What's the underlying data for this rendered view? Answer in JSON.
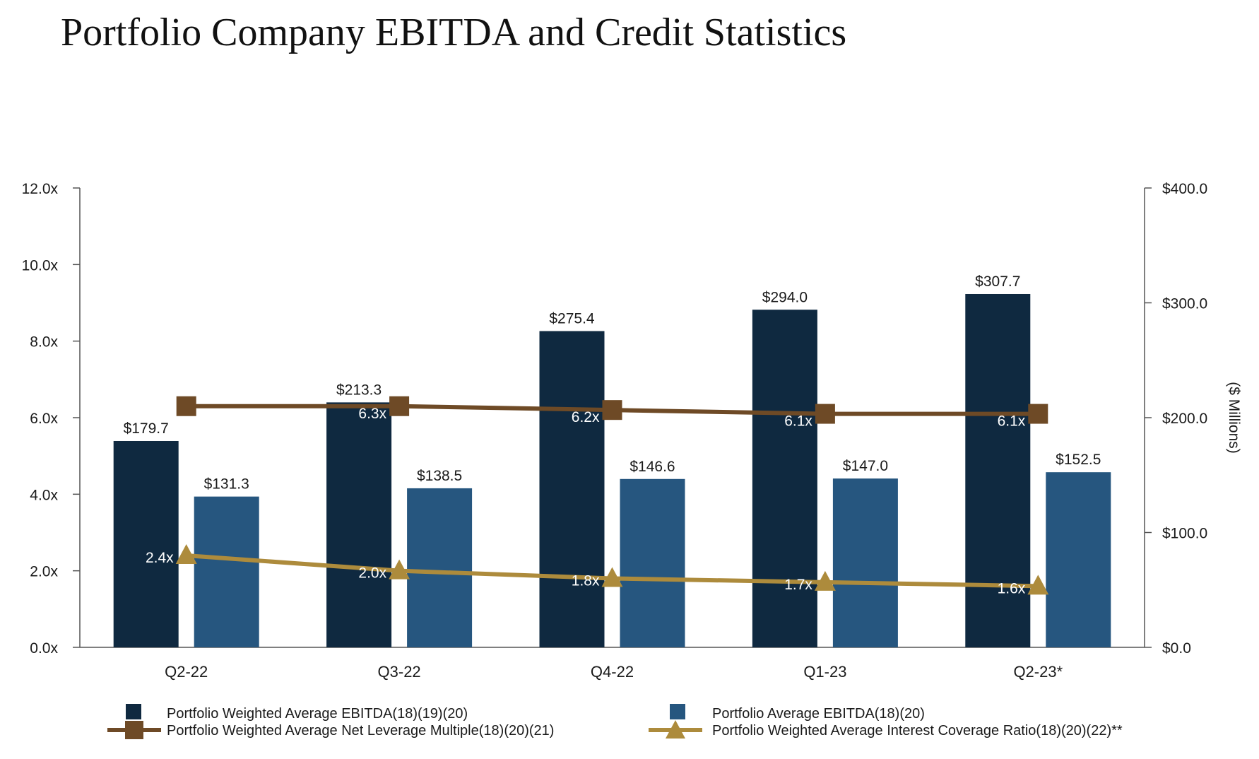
{
  "title": "Portfolio Company EBITDA and Credit Statistics",
  "chart_data": {
    "type": "bar",
    "categories": [
      "Q2-22",
      "Q3-22",
      "Q4-22",
      "Q1-23",
      "Q2-23*"
    ],
    "series": [
      {
        "name": "Portfolio Weighted Average EBITDA(18)(19)(20)",
        "kind": "bar",
        "axis": "right",
        "color": "#0f2940",
        "values": [
          179.7,
          213.3,
          275.4,
          294.0,
          307.7
        ],
        "labels": [
          "$179.7",
          "$213.3",
          "$275.4",
          "$294.0",
          "$307.7"
        ]
      },
      {
        "name": "Portfolio Average EBITDA(18)(20)",
        "kind": "bar",
        "axis": "right",
        "color": "#26567f",
        "values": [
          131.3,
          138.5,
          146.6,
          147.0,
          152.5
        ],
        "labels": [
          "$131.3",
          "$138.5",
          "$146.6",
          "$147.0",
          "$152.5"
        ]
      },
      {
        "name": "Portfolio Weighted Average Net Leverage Multiple(18)(20)(21)",
        "kind": "line",
        "marker": "square",
        "axis": "left",
        "color": "#6e4a26",
        "values": [
          6.3,
          6.3,
          6.2,
          6.1,
          6.1
        ],
        "labels": [
          "",
          "6.3x",
          "6.2x",
          "6.1x",
          "6.1x"
        ]
      },
      {
        "name": "Portfolio Weighted Average Interest Coverage Ratio(18)(20)(22)**",
        "kind": "line",
        "marker": "triangle",
        "axis": "left",
        "color": "#ad8b3c",
        "values": [
          2.4,
          2.0,
          1.8,
          1.7,
          1.6
        ],
        "labels": [
          "2.4x",
          "2.0x",
          "1.8x",
          "1.7x",
          "1.6x"
        ]
      }
    ],
    "y_left": {
      "ylim": [
        0,
        12
      ],
      "ticks": [
        "0.0x",
        "2.0x",
        "4.0x",
        "6.0x",
        "8.0x",
        "10.0x",
        "12.0x"
      ]
    },
    "y_right": {
      "ylim": [
        0,
        400
      ],
      "ticks": [
        "$0.0",
        "$100.0",
        "$200.0",
        "$300.0",
        "$400.0"
      ],
      "label": "($ Millions)"
    },
    "grid": false,
    "legend_position": "bottom"
  }
}
